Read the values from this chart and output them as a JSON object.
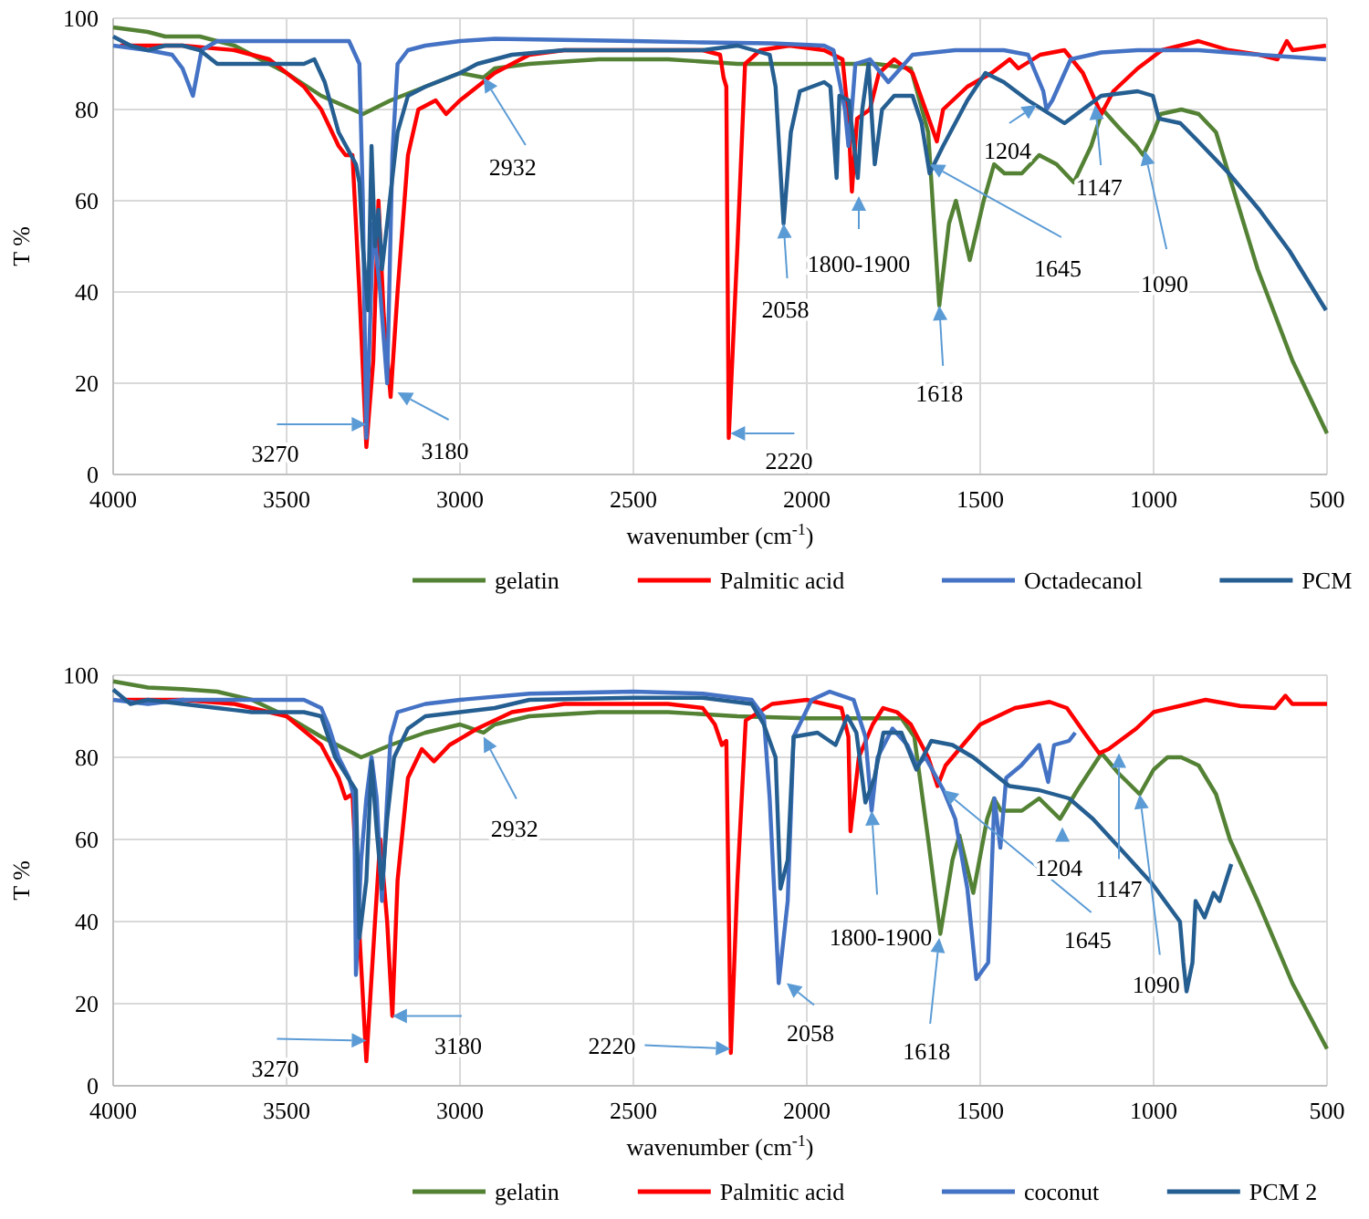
{
  "chart_data": [
    {
      "type": "line",
      "xlabel": "wavenumber (cm$^{-1}$)",
      "ylabel": "T %",
      "xlim": [
        4000,
        500
      ],
      "ylim": [
        0,
        100
      ],
      "xticks": [
        4000,
        3500,
        3000,
        2500,
        2000,
        1500,
        1000,
        500
      ],
      "yticks": [
        0,
        20,
        40,
        60,
        80,
        100
      ],
      "grid": true,
      "legend": "bottom",
      "series": [
        {
          "name": "gelatin",
          "color": "#548235",
          "x": [
            4000,
            3900,
            3850,
            3750,
            3650,
            3500,
            3400,
            3280,
            3200,
            3100,
            3000,
            2932,
            2900,
            2800,
            2600,
            2400,
            2200,
            2000,
            1800,
            1700,
            1650,
            1618,
            1590,
            1570,
            1530,
            1490,
            1460,
            1430,
            1380,
            1330,
            1280,
            1230,
            1180,
            1147,
            1100,
            1050,
            1030,
            1000,
            980,
            920,
            870,
            820,
            780,
            740,
            700,
            650,
            600,
            550,
            500
          ],
          "values": [
            98,
            97,
            96,
            96,
            94,
            88,
            83,
            79,
            82,
            85,
            88,
            87,
            89,
            90,
            91,
            91,
            90,
            90,
            90,
            89,
            75,
            37,
            55,
            60,
            47,
            60,
            68,
            66,
            66,
            70,
            68,
            64,
            72,
            80,
            76,
            72,
            70,
            75,
            79,
            80,
            79,
            75,
            65,
            55,
            45,
            35,
            25,
            17,
            9
          ]
        },
        {
          "name": "Palmitic acid",
          "color": "#ff0000",
          "x": [
            3980,
            3800,
            3650,
            3550,
            3450,
            3400,
            3350,
            3330,
            3310,
            3290,
            3270,
            3250,
            3235,
            3220,
            3200,
            3180,
            3150,
            3120,
            3070,
            3040,
            3000,
            2950,
            2900,
            2800,
            2700,
            2500,
            2300,
            2250,
            2240,
            2232,
            2225,
            2200,
            2178,
            2134,
            2050,
            1950,
            1897,
            1880,
            1870,
            1855,
            1818,
            1792,
            1748,
            1695,
            1625,
            1607,
            1537,
            1467,
            1415,
            1390,
            1327,
            1257,
            1204,
            1151,
            1116,
            1046,
            976,
            871,
            783,
            695,
            643,
            616,
            599,
            503
          ],
          "values": [
            94,
            94,
            93,
            91,
            85,
            80,
            72,
            70,
            70,
            40,
            6,
            25,
            60,
            35,
            17,
            40,
            70,
            80,
            82,
            79,
            82,
            85,
            88,
            92,
            93,
            93,
            93,
            92,
            87,
            85,
            8,
            50,
            90,
            93,
            94,
            93,
            91,
            78,
            62,
            78,
            80,
            88,
            91,
            88,
            73,
            80,
            85,
            88,
            91,
            89,
            92,
            93,
            88,
            79,
            84,
            89,
            93,
            95,
            93,
            92,
            91,
            95,
            93,
            94
          ]
        },
        {
          "name": "Octadecanol",
          "color": "#4472c4",
          "x": [
            4000,
            3900,
            3830,
            3800,
            3770,
            3745,
            3700,
            3500,
            3320,
            3290,
            3280,
            3270,
            3250,
            3230,
            3210,
            3195,
            3180,
            3150,
            3100,
            3000,
            2900,
            2500,
            2300,
            2100,
            1950,
            1923,
            1890,
            1880,
            1870,
            1860,
            1818,
            1765,
            1730,
            1695,
            1572,
            1432,
            1362,
            1318,
            1309,
            1292,
            1239,
            1151,
            1046,
            871,
            695,
            503
          ],
          "values": [
            94,
            93,
            92,
            89,
            83,
            93,
            95,
            95,
            95,
            90,
            60,
            8,
            55,
            40,
            20,
            70,
            90,
            93,
            94,
            95,
            95.5,
            95,
            94.7,
            94.5,
            94,
            93,
            80,
            72,
            80,
            90,
            91,
            86,
            89,
            92,
            93,
            93,
            92,
            84,
            80,
            82,
            91,
            92.5,
            93,
            93,
            92,
            91
          ]
        },
        {
          "name": "PCM",
          "color": "#255e91",
          "x": [
            4000,
            3950,
            3900,
            3850,
            3800,
            3750,
            3700,
            3600,
            3450,
            3420,
            3390,
            3350,
            3300,
            3290,
            3280,
            3265,
            3255,
            3245,
            3235,
            3225,
            3210,
            3195,
            3180,
            3150,
            3100,
            3000,
            2950,
            2900,
            2850,
            2700,
            2500,
            2300,
            2200,
            2107,
            2090,
            2067,
            2046,
            2020,
            1950,
            1932,
            1914,
            1906,
            1879,
            1853,
            1840,
            1822,
            1804,
            1783,
            1748,
            1695,
            1669,
            1646,
            1607,
            1537,
            1485,
            1432,
            1362,
            1257,
            1204,
            1151,
            1046,
            1002,
            985,
            923,
            871,
            783,
            695,
            608,
            503
          ],
          "values": [
            96,
            94,
            93,
            94,
            94,
            93,
            90,
            90,
            90,
            91,
            86,
            75,
            68,
            64,
            50,
            36,
            72,
            50,
            58,
            45,
            55,
            65,
            75,
            83,
            85,
            88,
            90,
            91,
            92,
            93,
            93,
            93,
            94,
            92,
            85,
            55,
            75,
            84,
            86,
            85,
            65,
            83,
            82,
            65,
            80,
            90,
            68,
            80,
            83,
            83,
            77,
            66,
            72,
            82,
            88,
            86,
            82,
            77,
            80,
            83,
            84,
            83,
            78,
            77,
            73,
            66,
            58,
            49,
            36
          ]
        }
      ],
      "annotations": [
        {
          "text": "3270",
          "x": 3270,
          "y": 11
        },
        {
          "text": "3180",
          "x": 3180,
          "y": 18
        },
        {
          "text": "2932",
          "x": 2932,
          "y": 87
        },
        {
          "text": "2220",
          "x": 2220,
          "y": 9
        },
        {
          "text": "2058",
          "x": 2067,
          "y": 55
        },
        {
          "text": "1800-1900",
          "x": 1850,
          "y": 61
        },
        {
          "text": "1618",
          "x": 1618,
          "y": 37
        },
        {
          "text": "1645",
          "x": 1645,
          "y": 68
        },
        {
          "text": "1204",
          "x": 1337,
          "y": 81
        },
        {
          "text": "1147",
          "x": 1168,
          "y": 81
        },
        {
          "text": "1090",
          "x": 1026,
          "y": 71
        }
      ]
    },
    {
      "type": "line",
      "xlabel": "wavenumber (cm$^{-1}$)",
      "ylabel": "T %",
      "xlim": [
        4000,
        500
      ],
      "ylim": [
        0,
        100
      ],
      "xticks": [
        4000,
        3500,
        3000,
        2500,
        2000,
        1500,
        1000,
        500
      ],
      "yticks": [
        0,
        20,
        40,
        60,
        80,
        100
      ],
      "grid": true,
      "legend": "bottom",
      "series": [
        {
          "name": "gelatin",
          "color": "#548235",
          "x": [
            4000,
            3900,
            3800,
            3700,
            3600,
            3500,
            3400,
            3285,
            3200,
            3100,
            3050,
            3000,
            2932,
            2900,
            2800,
            2600,
            2400,
            2200,
            2000,
            1727,
            1690,
            1650,
            1615,
            1580,
            1560,
            1520,
            1480,
            1460,
            1440,
            1380,
            1330,
            1270,
            1220,
            1150,
            1100,
            1040,
            1000,
            960,
            920,
            870,
            820,
            780,
            700,
            600,
            500
          ],
          "values": [
            98.5,
            97,
            96.6,
            96,
            94,
            90,
            85,
            80,
            83,
            86,
            87,
            88,
            86,
            88,
            90,
            91,
            91,
            90,
            89.5,
            89.5,
            85,
            60,
            37,
            55,
            61,
            47,
            65,
            70,
            67,
            67,
            70,
            65,
            72,
            81,
            76,
            71,
            77,
            80,
            80,
            78,
            71,
            60,
            45,
            25,
            9
          ]
        },
        {
          "name": "Palmitic acid",
          "color": "#ff0000",
          "x": [
            3980,
            3800,
            3650,
            3500,
            3400,
            3350,
            3330,
            3310,
            3295,
            3270,
            3245,
            3230,
            3210,
            3195,
            3180,
            3150,
            3110,
            3075,
            3030,
            2950,
            2850,
            2700,
            2400,
            2300,
            2265,
            2245,
            2232,
            2219,
            2200,
            2176,
            2100,
            2000,
            1900,
            1880,
            1874,
            1850,
            1810,
            1780,
            1740,
            1700,
            1650,
            1623,
            1600,
            1560,
            1500,
            1450,
            1400,
            1300,
            1250,
            1200,
            1157,
            1130,
            1050,
            1000,
            900,
            850,
            750,
            650,
            620,
            600,
            500
          ],
          "values": [
            94,
            94,
            93,
            90,
            83,
            75,
            70,
            71,
            45,
            6,
            40,
            60,
            40,
            17,
            50,
            75,
            82,
            79,
            83,
            87,
            91,
            93,
            93,
            92,
            88,
            83,
            84,
            8,
            50,
            89,
            93,
            94,
            92,
            85,
            62,
            80,
            88,
            92,
            91,
            88,
            80,
            73,
            78,
            82,
            88,
            90,
            92,
            93.5,
            92,
            86,
            81,
            82,
            87,
            91,
            93,
            94,
            92.5,
            92,
            95,
            93,
            93
          ]
        },
        {
          "name": "coconut",
          "color": "#4472c4",
          "x": [
            4000,
            3900,
            3800,
            3700,
            3600,
            3450,
            3400,
            3380,
            3350,
            3320,
            3305,
            3300,
            3285,
            3270,
            3255,
            3240,
            3225,
            3210,
            3200,
            3180,
            3100,
            3000,
            2800,
            2500,
            2300,
            2159,
            2124,
            2107,
            2081,
            2055,
            2038,
            1986,
            1934,
            1865,
            1831,
            1813,
            1796,
            1753,
            1710,
            1684,
            1658,
            1606,
            1572,
            1537,
            1511,
            1477,
            1459,
            1442,
            1425,
            1382,
            1330,
            1304,
            1287,
            1244,
            1226
          ],
          "values": [
            94,
            93,
            94,
            94,
            94,
            94,
            92,
            88,
            80,
            75,
            70,
            27,
            55,
            70,
            80,
            70,
            45,
            70,
            85,
            91,
            93,
            94,
            95.5,
            96,
            95.5,
            94,
            90,
            70,
            25,
            45,
            85,
            94,
            96,
            94,
            85,
            67,
            80,
            87,
            83,
            78,
            80,
            72,
            65,
            48,
            26,
            30,
            70,
            58,
            75,
            78,
            83,
            74,
            83,
            84,
            86
          ]
        },
        {
          "name": "PCM 2",
          "color": "#255e91",
          "x": [
            4000,
            3950,
            3900,
            3800,
            3700,
            3600,
            3450,
            3400,
            3360,
            3330,
            3300,
            3290,
            3270,
            3255,
            3240,
            3225,
            3210,
            3190,
            3150,
            3100,
            3000,
            2900,
            2800,
            2500,
            2300,
            2159,
            2124,
            2090,
            2076,
            2055,
            2038,
            1969,
            1917,
            1883,
            1857,
            1831,
            1805,
            1779,
            1727,
            1684,
            1641,
            1580,
            1520,
            1416,
            1330,
            1244,
            1175,
            1088,
            1002,
            924,
            914,
            905,
            888,
            879,
            853,
            827,
            810,
            776
          ],
          "values": [
            96.5,
            93,
            94,
            93,
            92,
            91,
            91,
            90,
            80,
            76,
            72,
            36,
            50,
            79,
            62,
            48,
            65,
            80,
            87,
            90,
            91,
            92,
            94,
            94.5,
            94.5,
            93,
            88,
            80,
            48,
            55,
            85,
            86,
            83,
            90,
            86,
            69,
            75,
            86,
            86,
            77,
            84,
            83,
            80,
            73,
            72,
            70,
            65,
            57,
            49,
            40,
            30,
            23,
            30,
            45,
            41,
            47,
            45,
            54
          ]
        }
      ],
      "annotations": [
        {
          "text": "3270",
          "x": 3270,
          "y": 11
        },
        {
          "text": "3180",
          "x": 3195,
          "y": 17
        },
        {
          "text": "2932",
          "x": 2932,
          "y": 85
        },
        {
          "text": "2220",
          "x": 2220,
          "y": 9
        },
        {
          "text": "2058",
          "x": 2058,
          "y": 25
        },
        {
          "text": "1800-1900",
          "x": 1813,
          "y": 67
        },
        {
          "text": "1618",
          "x": 1618,
          "y": 36
        },
        {
          "text": "1645",
          "x": 1606,
          "y": 72
        },
        {
          "text": "1204",
          "x": 1263,
          "y": 63
        },
        {
          "text": "1147",
          "x": 1100,
          "y": 81
        },
        {
          "text": "1090",
          "x": 1040,
          "y": 71
        }
      ]
    }
  ]
}
